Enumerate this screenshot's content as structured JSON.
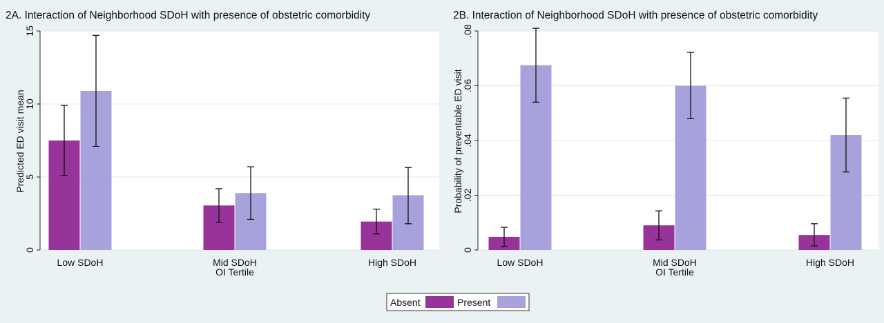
{
  "colors": {
    "background": "#eaf2f3",
    "plot_area": "#ffffff",
    "gridline": "#dde8ea",
    "absent": "#973399",
    "present": "#a8a2dc",
    "error_bar": "#111111"
  },
  "legend": {
    "absent_label": "Absent",
    "present_label": "Present"
  },
  "chart_data": [
    {
      "type": "bar",
      "title": "2A. Interaction of Neighborhood SDoH with presence of obstetric comorbidity",
      "ylabel": "Predicted ED visit mean",
      "xlabel": "OI Tertile",
      "categories": [
        "Low SDoH",
        "Mid SDoH",
        "High SDoH"
      ],
      "ylim": [
        0,
        15
      ],
      "yticks": [
        0,
        5,
        10,
        15
      ],
      "ytick_labels": [
        "0",
        "5",
        "10",
        "15"
      ],
      "grid": true,
      "legend_position": "bottom-center",
      "series": [
        {
          "name": "Absent",
          "values": [
            7.5,
            3.05,
            1.95
          ],
          "ci_low": [
            5.1,
            1.9,
            1.1
          ],
          "ci_high": [
            9.9,
            4.2,
            2.8
          ]
        },
        {
          "name": "Present",
          "values": [
            10.9,
            3.9,
            3.75
          ],
          "ci_low": [
            7.1,
            2.1,
            1.8
          ],
          "ci_high": [
            14.7,
            5.7,
            5.65
          ]
        }
      ]
    },
    {
      "type": "bar",
      "title": "2B. Interaction of Neighborhood SDoH with presence of obstetric comorbidity",
      "ylabel": "Probability of preventable ED visit",
      "xlabel": "OI Tertile",
      "categories": [
        "Low SDoH",
        "Mid SDoH",
        "High SDoH"
      ],
      "ylim": [
        0,
        0.08
      ],
      "yticks": [
        0,
        0.02,
        0.04,
        0.06,
        0.08
      ],
      "ytick_labels": [
        "0",
        ".02",
        ".04",
        ".06",
        ".08"
      ],
      "grid": true,
      "legend_position": "bottom-center",
      "series": [
        {
          "name": "Absent",
          "values": [
            0.0048,
            0.009,
            0.0055
          ],
          "ci_low": [
            0.0012,
            0.0037,
            0.0015
          ],
          "ci_high": [
            0.0083,
            0.0143,
            0.0096
          ]
        },
        {
          "name": "Present",
          "values": [
            0.0675,
            0.06,
            0.042
          ],
          "ci_low": [
            0.054,
            0.048,
            0.0285
          ],
          "ci_high": [
            0.081,
            0.0722,
            0.0555
          ]
        }
      ]
    }
  ]
}
